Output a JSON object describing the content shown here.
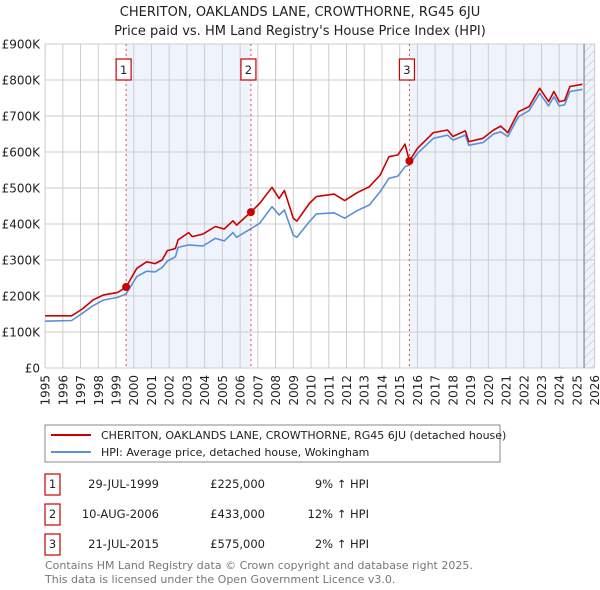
{
  "chart_data": {
    "type": "line",
    "title": "CHERITON, OAKLANDS LANE, CROWTHORNE, RG45 6JU",
    "subtitle": "Price paid vs. HM Land Registry's House Price Index (HPI)",
    "xlim": [
      1995,
      2026
    ],
    "ylim": [
      0,
      900000
    ],
    "grid": true,
    "y_ticks": [
      {
        "value": 0,
        "label": "£0"
      },
      {
        "value": 100000,
        "label": "£100K"
      },
      {
        "value": 200000,
        "label": "£200K"
      },
      {
        "value": 300000,
        "label": "£300K"
      },
      {
        "value": 400000,
        "label": "£400K"
      },
      {
        "value": 500000,
        "label": "£500K"
      },
      {
        "value": 600000,
        "label": "£600K"
      },
      {
        "value": 700000,
        "label": "£700K"
      },
      {
        "value": 800000,
        "label": "£800K"
      },
      {
        "value": 900000,
        "label": "£900K"
      }
    ],
    "x_ticks": [
      "1995",
      "1996",
      "1997",
      "1998",
      "1999",
      "2000",
      "2001",
      "2002",
      "2003",
      "2004",
      "2005",
      "2006",
      "2007",
      "2008",
      "2009",
      "2010",
      "2011",
      "2012",
      "2013",
      "2014",
      "2015",
      "2016",
      "2017",
      "2018",
      "2019",
      "2020",
      "2021",
      "2022",
      "2023",
      "2024",
      "2025",
      "2026"
    ],
    "shaded_ranges": [
      [
        1999.57,
        2006.61
      ],
      [
        2015.55,
        2026
      ]
    ],
    "forecast_hatch_from": 2025.4,
    "series": [
      {
        "name": "CHERITON, OAKLANDS LANE, CROWTHORNE, RG45 6JU (detached house)",
        "color": "#cc0000",
        "x": [
          1995,
          1996.5,
          1997.1,
          1997.7,
          1998.3,
          1999.1,
          1999.57,
          2000.17,
          2000.73,
          2001.2,
          2001.6,
          2001.9,
          2002.35,
          2002.5,
          2003.1,
          2003.3,
          2003.9,
          2004.6,
          2005.1,
          2005.6,
          2005.8,
          2006.61,
          2007.1,
          2007.8,
          2008.2,
          2008.5,
          2009.0,
          2009.2,
          2009.9,
          2010.3,
          2011.3,
          2011.9,
          2012.6,
          2013.3,
          2013.9,
          2014.4,
          2014.9,
          2015.3,
          2015.55,
          2016.0,
          2016.9,
          2017.7,
          2018.0,
          2018.7,
          2018.9,
          2019.7,
          2020.3,
          2020.7,
          2021.1,
          2021.7,
          2022.3,
          2022.9,
          2023.4,
          2023.7,
          2024.0,
          2024.3,
          2024.6,
          2025.3
        ],
        "values": [
          145000,
          145000,
          164000,
          189000,
          203000,
          210000,
          225000,
          277000,
          295000,
          290000,
          300000,
          326000,
          332000,
          356000,
          376000,
          365000,
          372000,
          393000,
          386000,
          409000,
          397000,
          433000,
          457000,
          502000,
          471000,
          493000,
          416000,
          408000,
          457000,
          476000,
          483000,
          465000,
          487000,
          504000,
          536000,
          587000,
          592000,
          622000,
          575000,
          610000,
          654000,
          661000,
          643000,
          659000,
          629000,
          638000,
          661000,
          672000,
          654000,
          712000,
          726000,
          777000,
          740000,
          768000,
          740000,
          743000,
          782000,
          788000
        ]
      },
      {
        "name": "HPI: Average price, detached house, Wokingham",
        "color": "#5b8fd6",
        "x": [
          1995,
          1996.5,
          1997.1,
          1997.7,
          1998.3,
          1999.1,
          1999.57,
          2000.17,
          2000.73,
          2001.2,
          2001.6,
          2001.9,
          2002.35,
          2002.5,
          2003.1,
          2003.9,
          2004.6,
          2005.1,
          2005.6,
          2005.8,
          2006.61,
          2007.1,
          2007.8,
          2008.2,
          2008.5,
          2009.0,
          2009.2,
          2009.9,
          2010.3,
          2011.3,
          2011.9,
          2012.6,
          2013.3,
          2013.9,
          2014.4,
          2014.9,
          2015.3,
          2015.55,
          2016.0,
          2016.9,
          2017.7,
          2018.0,
          2018.7,
          2018.9,
          2019.7,
          2020.3,
          2020.7,
          2021.1,
          2021.7,
          2022.3,
          2022.9,
          2023.4,
          2023.7,
          2024.0,
          2024.3,
          2024.6,
          2025.3
        ],
        "values": [
          130000,
          132000,
          152000,
          173000,
          189000,
          196000,
          206000,
          254000,
          269000,
          267000,
          279000,
          297000,
          309000,
          335000,
          342000,
          339000,
          360000,
          353000,
          376000,
          363000,
          387000,
          402000,
          448000,
          425000,
          439000,
          369000,
          363000,
          406000,
          428000,
          431000,
          416000,
          437000,
          453000,
          490000,
          527000,
          533000,
          559000,
          564000,
          596000,
          638000,
          647000,
          633000,
          647000,
          619000,
          626000,
          650000,
          656000,
          643000,
          698000,
          715000,
          763000,
          728000,
          754000,
          728000,
          731000,
          768000,
          774000
        ]
      }
    ],
    "sales": [
      {
        "label": "1",
        "x": 1999.57,
        "value": 225000
      },
      {
        "label": "2",
        "x": 2006.61,
        "value": 433000
      },
      {
        "label": "3",
        "x": 2015.55,
        "value": 575000
      }
    ],
    "legend": {
      "placement": "bottom",
      "entries": [
        "CHERITON, OAKLANDS LANE, CROWTHORNE, RG45 6JU (detached house)",
        "HPI: Average price, detached house, Wokingham"
      ]
    }
  },
  "transactions": [
    {
      "num": "1",
      "date": "29-JUL-1999",
      "price": "£225,000",
      "hpi": "9% ↑ HPI"
    },
    {
      "num": "2",
      "date": "10-AUG-2006",
      "price": "£433,000",
      "hpi": "12% ↑ HPI"
    },
    {
      "num": "3",
      "date": "21-JUL-2015",
      "price": "£575,000",
      "hpi": "2% ↑ HPI"
    }
  ],
  "footer": {
    "line1": "Contains HM Land Registry data © Crown copyright and database right 2025.",
    "line2": "This data is licensed under the Open Government Licence v3.0."
  }
}
